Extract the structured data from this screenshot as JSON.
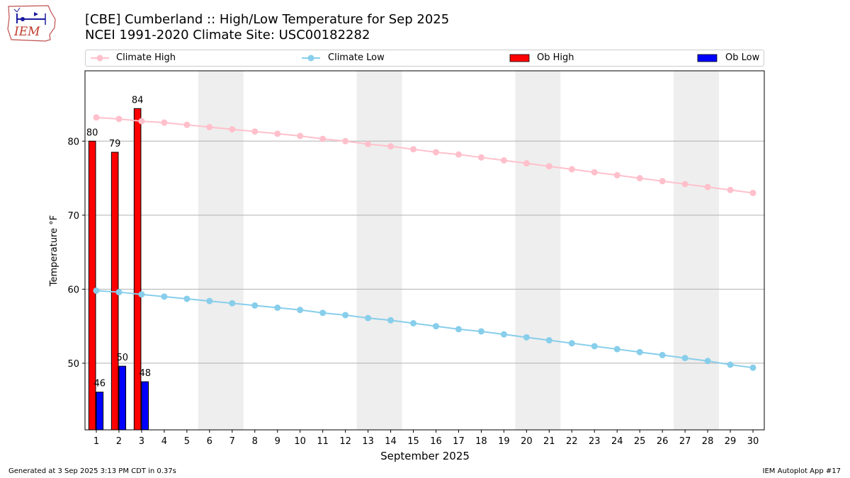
{
  "title": {
    "line1": "[CBE] Cumberland :: High/Low Temperature for Sep 2025",
    "line2": "NCEI 1991-2020 Climate Site: USC00182282"
  },
  "logo_text": "IEM",
  "legend": {
    "climate_high": "Climate High",
    "climate_low": "Climate Low",
    "ob_high": "Ob High",
    "ob_low": "Ob Low"
  },
  "footer": {
    "left": "Generated at 3 Sep 2025 3:13 PM CDT in 0.37s",
    "right": "IEM Autoplot App #17"
  },
  "colors": {
    "climate_high": "#ffc0cb",
    "climate_low": "#87ceeb",
    "ob_high": "#ff0000",
    "ob_low": "#0000ff",
    "weekend_shade": "#eeeeee",
    "grid": "#b0b0b0"
  },
  "chart_data": {
    "type": "bar",
    "xlabel": "September 2025",
    "ylabel": "Temperature °F",
    "xlim": [
      0.5,
      30.5
    ],
    "ylim": [
      41,
      89.5
    ],
    "yticks": [
      50,
      60,
      70,
      80
    ],
    "grid": "horizontal",
    "legend_position": "top",
    "x": [
      1,
      2,
      3,
      4,
      5,
      6,
      7,
      8,
      9,
      10,
      11,
      12,
      13,
      14,
      15,
      16,
      17,
      18,
      19,
      20,
      21,
      22,
      23,
      24,
      25,
      26,
      27,
      28,
      29,
      30
    ],
    "weekend_spans": [
      [
        5.5,
        7.5
      ],
      [
        12.5,
        14.5
      ],
      [
        19.5,
        21.5
      ],
      [
        26.5,
        28.5
      ]
    ],
    "series": [
      {
        "name": "Climate High",
        "kind": "line",
        "values": [
          83.2,
          83.0,
          82.7,
          82.5,
          82.2,
          81.9,
          81.6,
          81.3,
          81.0,
          80.7,
          80.3,
          80.0,
          79.6,
          79.3,
          78.9,
          78.5,
          78.2,
          77.8,
          77.4,
          77.0,
          76.6,
          76.2,
          75.8,
          75.4,
          75.0,
          74.6,
          74.2,
          73.8,
          73.4,
          73.0
        ]
      },
      {
        "name": "Climate Low",
        "kind": "line",
        "values": [
          59.8,
          59.6,
          59.3,
          59.0,
          58.7,
          58.4,
          58.1,
          57.8,
          57.5,
          57.2,
          56.8,
          56.5,
          56.1,
          55.8,
          55.4,
          55.0,
          54.6,
          54.3,
          53.9,
          53.5,
          53.1,
          52.7,
          52.3,
          51.9,
          51.5,
          51.1,
          50.7,
          50.3,
          49.8,
          49.4
        ]
      },
      {
        "name": "Ob High",
        "kind": "bar",
        "x": [
          1,
          2,
          3
        ],
        "values": [
          80,
          79,
          84
        ],
        "value_heights": [
          80,
          78.5,
          84.4
        ]
      },
      {
        "name": "Ob Low",
        "kind": "bar",
        "x": [
          1,
          2,
          3
        ],
        "values": [
          46,
          50,
          48
        ],
        "value_heights": [
          46.1,
          49.6,
          47.5
        ]
      }
    ]
  }
}
